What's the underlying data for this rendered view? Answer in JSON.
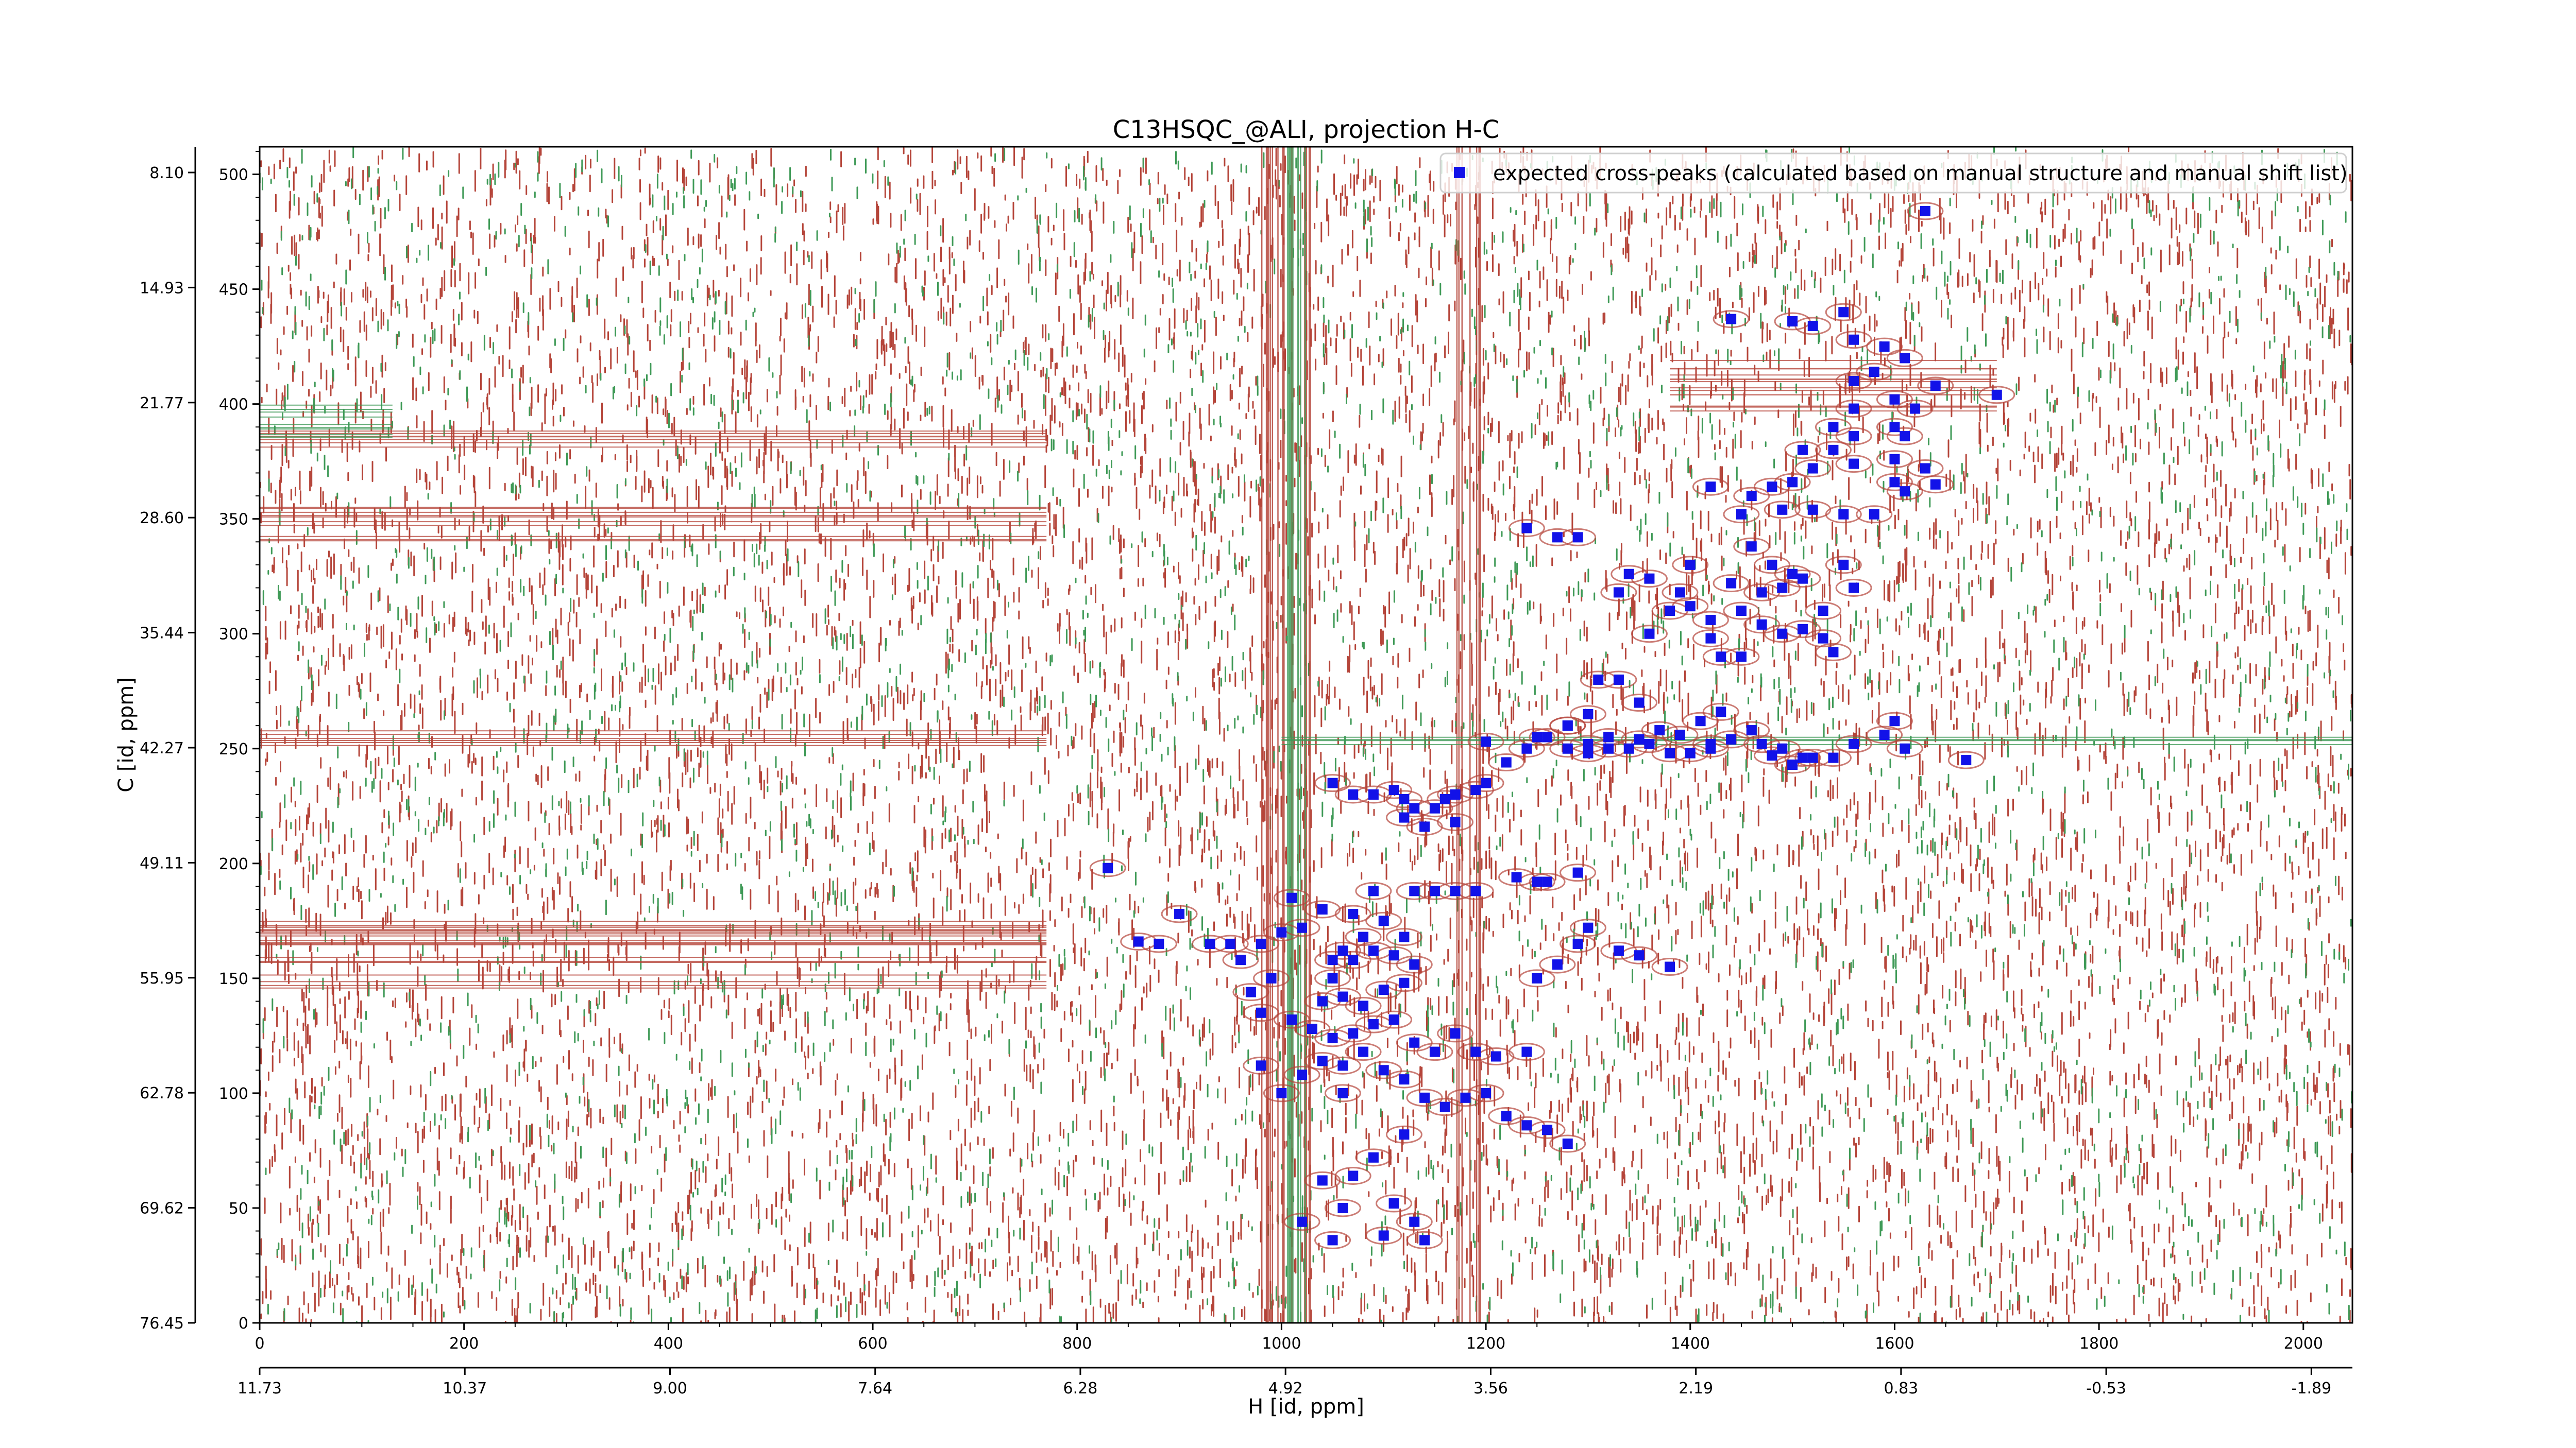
{
  "chart_data": {
    "type": "scatter",
    "title": "C13HSQC_@ALI, projection H-C",
    "xlabel": "H [id, ppm]",
    "ylabel": "C [id, ppm]",
    "xlim": [
      0,
      2048
    ],
    "ylim": [
      0,
      512
    ],
    "x_ticks": [
      0,
      200,
      400,
      600,
      800,
      1000,
      1200,
      1400,
      1600,
      1800,
      2000
    ],
    "y_ticks": [
      0,
      50,
      100,
      150,
      200,
      250,
      300,
      350,
      400,
      450,
      500
    ],
    "x_ppm_ticks": [
      "11.73",
      "10.37",
      "9.00",
      "7.64",
      "6.28",
      "4.92",
      "3.56",
      "2.19",
      "0.83",
      "-0.53",
      "-1.89"
    ],
    "y_ppm_ticks": [
      "8.10",
      "14.93",
      "21.77",
      "28.60",
      "35.44",
      "42.27",
      "49.11",
      "55.95",
      "62.78",
      "69.62",
      "76.45"
    ],
    "legend_position": "top-right",
    "colors": {
      "positive_contours": "#b5453a",
      "negative_contours": "#3f9a57",
      "marker": "#1212e8"
    },
    "series": [
      {
        "name": "expected cross-peaks (calculated based on manual structure and manual shift list)",
        "marker": "square",
        "points": [
          [
            1630,
            484
          ],
          [
            1550,
            440
          ],
          [
            1440,
            437
          ],
          [
            1500,
            436
          ],
          [
            1520,
            434
          ],
          [
            1560,
            428
          ],
          [
            1590,
            425
          ],
          [
            1610,
            420
          ],
          [
            1580,
            414
          ],
          [
            1640,
            408
          ],
          [
            1560,
            410
          ],
          [
            1600,
            402
          ],
          [
            1620,
            398
          ],
          [
            1560,
            398
          ],
          [
            1700,
            404
          ],
          [
            1540,
            390
          ],
          [
            1560,
            386
          ],
          [
            1600,
            390
          ],
          [
            1540,
            380
          ],
          [
            1510,
            380
          ],
          [
            1520,
            372
          ],
          [
            1560,
            374
          ],
          [
            1600,
            376
          ],
          [
            1610,
            386
          ],
          [
            1630,
            372
          ],
          [
            1640,
            365
          ],
          [
            1600,
            366
          ],
          [
            1480,
            364
          ],
          [
            1500,
            366
          ],
          [
            1460,
            360
          ],
          [
            1420,
            364
          ],
          [
            1450,
            352
          ],
          [
            1490,
            354
          ],
          [
            1520,
            354
          ],
          [
            1550,
            352
          ],
          [
            1580,
            352
          ],
          [
            1610,
            362
          ],
          [
            1460,
            338
          ],
          [
            1480,
            330
          ],
          [
            1500,
            326
          ],
          [
            1440,
            322
          ],
          [
            1470,
            318
          ],
          [
            1490,
            320
          ],
          [
            1510,
            324
          ],
          [
            1530,
            310
          ],
          [
            1510,
            302
          ],
          [
            1470,
            304
          ],
          [
            1450,
            290
          ],
          [
            1420,
            298
          ],
          [
            1390,
            318
          ],
          [
            1380,
            310
          ],
          [
            1360,
            324
          ],
          [
            1340,
            326
          ],
          [
            1330,
            318
          ],
          [
            1400,
            312
          ],
          [
            1360,
            300
          ],
          [
            1420,
            306
          ],
          [
            1450,
            310
          ],
          [
            1490,
            300
          ],
          [
            1530,
            298
          ],
          [
            1550,
            330
          ],
          [
            1560,
            320
          ],
          [
            1240,
            346
          ],
          [
            1270,
            342
          ],
          [
            1290,
            342
          ],
          [
            1400,
            330
          ],
          [
            1540,
            292
          ],
          [
            1430,
            290
          ],
          [
            1280,
            260
          ],
          [
            1300,
            265
          ],
          [
            1310,
            280
          ],
          [
            1330,
            280
          ],
          [
            1350,
            270
          ],
          [
            1370,
            258
          ],
          [
            1390,
            256
          ],
          [
            1300,
            252
          ],
          [
            1280,
            260
          ],
          [
            1260,
            255
          ],
          [
            1280,
            250
          ],
          [
            1300,
            248
          ],
          [
            1320,
            250
          ],
          [
            1340,
            250
          ],
          [
            1360,
            252
          ],
          [
            1400,
            248
          ],
          [
            1410,
            262
          ],
          [
            1430,
            266
          ],
          [
            1420,
            252
          ],
          [
            1440,
            254
          ],
          [
            1350,
            254
          ],
          [
            1320,
            255
          ],
          [
            1250,
            255
          ],
          [
            1240,
            250
          ],
          [
            1220,
            244
          ],
          [
            1200,
            253
          ],
          [
            1380,
            248
          ],
          [
            1470,
            252
          ],
          [
            1480,
            247
          ],
          [
            1500,
            243
          ],
          [
            1510,
            246
          ],
          [
            1520,
            246
          ],
          [
            1540,
            246
          ],
          [
            1560,
            252
          ],
          [
            1590,
            256
          ],
          [
            1610,
            250
          ],
          [
            1670,
            245
          ],
          [
            1050,
            235
          ],
          [
            1070,
            230
          ],
          [
            1090,
            230
          ],
          [
            1110,
            232
          ],
          [
            1120,
            228
          ],
          [
            1130,
            224
          ],
          [
            1150,
            224
          ],
          [
            1160,
            228
          ],
          [
            1170,
            230
          ],
          [
            1190,
            232
          ],
          [
            1200,
            235
          ],
          [
            1170,
            218
          ],
          [
            1120,
            220
          ],
          [
            1140,
            216
          ],
          [
            830,
            198
          ],
          [
            1090,
            188
          ],
          [
            1130,
            188
          ],
          [
            1150,
            188
          ],
          [
            1170,
            188
          ],
          [
            1190,
            188
          ],
          [
            1230,
            194
          ],
          [
            1250,
            192
          ],
          [
            1260,
            192
          ],
          [
            1290,
            196
          ],
          [
            1010,
            185
          ],
          [
            1040,
            180
          ],
          [
            1070,
            178
          ],
          [
            1100,
            175
          ],
          [
            1120,
            168
          ],
          [
            1080,
            168
          ],
          [
            1060,
            162
          ],
          [
            1020,
            172
          ],
          [
            1000,
            170
          ],
          [
            980,
            165
          ],
          [
            960,
            158
          ],
          [
            930,
            165
          ],
          [
            900,
            178
          ],
          [
            880,
            165
          ],
          [
            860,
            166
          ],
          [
            1050,
            150
          ],
          [
            1040,
            140
          ],
          [
            1060,
            142
          ],
          [
            1080,
            138
          ],
          [
            1100,
            145
          ],
          [
            1120,
            148
          ],
          [
            1130,
            156
          ],
          [
            1110,
            160
          ],
          [
            1090,
            162
          ],
          [
            1070,
            158
          ],
          [
            1050,
            158
          ],
          [
            990,
            150
          ],
          [
            970,
            144
          ],
          [
            980,
            135
          ],
          [
            1010,
            132
          ],
          [
            1030,
            128
          ],
          [
            1050,
            124
          ],
          [
            1070,
            126
          ],
          [
            1090,
            130
          ],
          [
            1110,
            132
          ],
          [
            1130,
            122
          ],
          [
            1150,
            118
          ],
          [
            1170,
            126
          ],
          [
            1190,
            118
          ],
          [
            1210,
            116
          ],
          [
            1240,
            118
          ],
          [
            1250,
            150
          ],
          [
            1270,
            156
          ],
          [
            1290,
            165
          ],
          [
            1300,
            172
          ],
          [
            1330,
            162
          ],
          [
            1350,
            160
          ],
          [
            1380,
            155
          ],
          [
            1020,
            108
          ],
          [
            1040,
            114
          ],
          [
            1060,
            112
          ],
          [
            1080,
            118
          ],
          [
            1100,
            110
          ],
          [
            1120,
            106
          ],
          [
            1140,
            98
          ],
          [
            1160,
            94
          ],
          [
            1180,
            98
          ],
          [
            1200,
            100
          ],
          [
            1220,
            90
          ],
          [
            1240,
            86
          ],
          [
            1260,
            84
          ],
          [
            1280,
            78
          ],
          [
            1000,
            100
          ],
          [
            980,
            112
          ],
          [
            1060,
            100
          ],
          [
            1120,
            82
          ],
          [
            1090,
            72
          ],
          [
            1070,
            64
          ],
          [
            1040,
            62
          ],
          [
            1020,
            44
          ],
          [
            1060,
            50
          ],
          [
            1110,
            52
          ],
          [
            1130,
            44
          ],
          [
            1140,
            36
          ],
          [
            1100,
            38
          ],
          [
            1050,
            36
          ],
          [
            950,
            165
          ],
          [
            1600,
            262
          ],
          [
            1420,
            250
          ],
          [
            1460,
            258
          ],
          [
            1490,
            250
          ]
        ]
      }
    ]
  }
}
